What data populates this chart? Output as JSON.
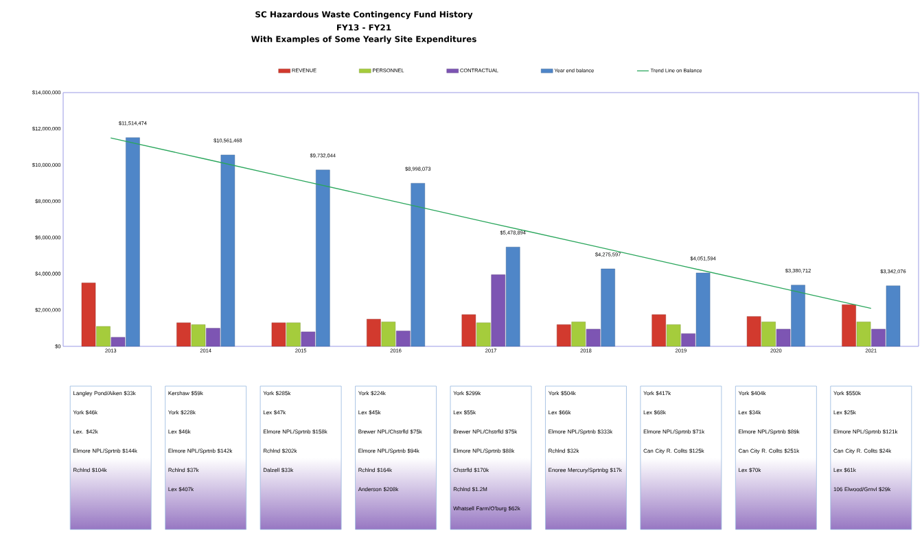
{
  "chart_data": {
    "type": "bar",
    "title": "SC Hazardous Waste Contingency Fund History",
    "subtitle": "FY13 - FY21",
    "categories": [
      "2013",
      "2014",
      "2015",
      "2016",
      "2017",
      "2018",
      "2019",
      "2020",
      "2021"
    ],
    "series": [
      {
        "name": "REVENUE",
        "color": "#d23a2e",
        "values": [
          3500000,
          1300000,
          1300000,
          1500000,
          1750000,
          1200000,
          1750000,
          1650000,
          2300000
        ]
      },
      {
        "name": "PERSONNEL",
        "color": "#a5cc3c",
        "values": [
          1100000,
          1200000,
          1300000,
          1350000,
          1300000,
          1350000,
          1200000,
          1350000,
          1350000
        ]
      },
      {
        "name": "CONTRACTUAL",
        "color": "#7d55b3",
        "values": [
          500000,
          1000000,
          800000,
          850000,
          3950000,
          950000,
          700000,
          950000,
          950000
        ]
      },
      {
        "name": "Year end balance",
        "color": "#4f86c8",
        "values": [
          11514474,
          10561468,
          9732044,
          8998073,
          5478894,
          4275597,
          4051594,
          3380712,
          3342076
        ],
        "value_labels": [
          "$11,514,474",
          "$10,561,468",
          "$9,732,044",
          "$8,998,073",
          "$5,478,894",
          "$4,275,597",
          "$4,051,594",
          "$3,380,712",
          "$3,342,076"
        ]
      },
      {
        "name": "Trend Line on Balance",
        "type": "line",
        "color": "#2aa65c",
        "values": [
          11500000,
          10330000,
          9150000,
          7980000,
          6800000,
          5630000,
          4450000,
          3280000,
          2100000
        ]
      }
    ],
    "ylim": [
      0,
      14000000
    ],
    "yticks": [
      {
        "value": 0,
        "label": "$0"
      },
      {
        "value": 2000000,
        "label": "$2,000,000"
      },
      {
        "value": 4000000,
        "label": "$4,000,000"
      },
      {
        "value": 6000000,
        "label": "$6,000,000"
      },
      {
        "value": 8000000,
        "label": "$8,000,000"
      },
      {
        "value": 10000000,
        "label": "$10,000,000"
      },
      {
        "value": 12000000,
        "label": "$12,000,000"
      },
      {
        "value": 14000000,
        "label": "$14,000,000"
      }
    ],
    "legend": "top",
    "marker": "none",
    "annotations": [
      "With Examples of Some Yearly Site Expenditures",
      "Langley Pond/Aiken $33k",
      "York $46k",
      "Lex. $42k",
      "Elmore NPL/Sprtnb $144k",
      "Rchlnd $104k",
      "Kershaw $59k",
      "York $228k",
      "Lex $46k",
      "Elmore NPL/Sprtnb $142k",
      "Rchlnd $37k",
      "Lex $407k",
      "York $285k",
      "Lex $47k",
      "Elmore NPL/Sprtnb $158k",
      "Rchlnd $202k",
      "Dalzell $33k",
      "York $224k",
      "Lex $45k",
      "Brewer NPL/Chstrfld $75k",
      "Elmore NPL/Sprtnb $94k",
      "Rchlnd $164k",
      "Anderson $208k",
      "York $299k",
      "Lex $55k",
      "Brewer NPL/Chstrfld $75k",
      "Elmore NPL/Sprtnb $88k",
      "Chstrfld $170k",
      "Rchlnd $1.2M",
      "Whatsell Farm/O'burg $62k",
      "York $504k",
      "Lex $66k",
      "Elmore NPL/Sprtnb $333k",
      "Rchlnd $32k",
      "Enoree Mercury/Sprtnbg $17k",
      "York $417k",
      "Lex $68k",
      "Elmore NPL/Sprtnb $71k",
      "Can City R. Collts $125k",
      "York $404k",
      "Lex $34k",
      "Elmore NPL/Sprtnb $89k",
      "Can City R. Collts $251k",
      "Lex $70k",
      "York $550k",
      "Lex $25k",
      "Elmore NPL/Sprtnb $121k",
      "Can City R. Collts $24k",
      "Lex $61k",
      "106 Elwood/Grnvl $29k"
    ]
  }
}
